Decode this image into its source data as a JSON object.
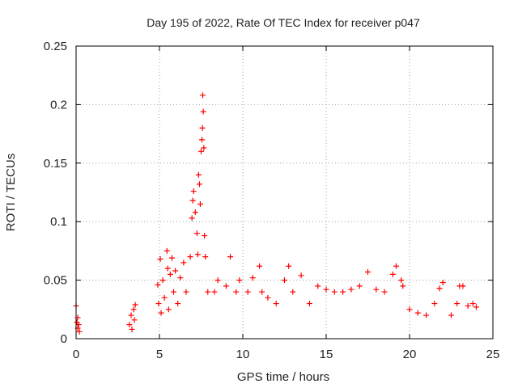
{
  "chart_data": {
    "type": "scatter",
    "title": "Day 195 of 2022, Rate Of TEC Index for receiver p047",
    "xlabel": "GPS time / hours",
    "ylabel": "ROTI / TECUs",
    "xlim": [
      0,
      25
    ],
    "ylim": [
      0,
      0.25
    ],
    "x_ticks": [
      0,
      5,
      10,
      15,
      20,
      25
    ],
    "x_tick_labels": [
      "0",
      "5",
      "10",
      "15",
      "20",
      "25"
    ],
    "y_ticks": [
      0,
      0.05,
      0.1,
      0.15,
      0.2,
      0.25
    ],
    "y_tick_labels": [
      "0",
      "0.05",
      "0.1",
      "0.15",
      "0.2",
      "0.25"
    ],
    "grid": true,
    "marker": "+",
    "color": "#ff0000",
    "series": [
      {
        "points": [
          [
            0.0,
            0.028
          ],
          [
            0.05,
            0.014
          ],
          [
            0.1,
            0.018
          ],
          [
            0.1,
            0.009
          ],
          [
            0.15,
            0.012
          ],
          [
            0.2,
            0.006
          ],
          [
            3.2,
            0.012
          ],
          [
            3.3,
            0.02
          ],
          [
            3.35,
            0.008
          ],
          [
            3.45,
            0.025
          ],
          [
            3.5,
            0.016
          ],
          [
            3.55,
            0.029
          ],
          [
            4.9,
            0.046
          ],
          [
            4.95,
            0.03
          ],
          [
            5.05,
            0.068
          ],
          [
            5.1,
            0.022
          ],
          [
            5.2,
            0.05
          ],
          [
            5.3,
            0.035
          ],
          [
            5.45,
            0.075
          ],
          [
            5.5,
            0.06
          ],
          [
            5.55,
            0.025
          ],
          [
            5.65,
            0.055
          ],
          [
            5.75,
            0.069
          ],
          [
            5.85,
            0.04
          ],
          [
            5.95,
            0.058
          ],
          [
            6.1,
            0.03
          ],
          [
            6.25,
            0.052
          ],
          [
            6.45,
            0.065
          ],
          [
            6.6,
            0.04
          ],
          [
            6.85,
            0.07
          ],
          [
            6.95,
            0.103
          ],
          [
            7.0,
            0.118
          ],
          [
            7.05,
            0.126
          ],
          [
            7.15,
            0.108
          ],
          [
            7.25,
            0.09
          ],
          [
            7.3,
            0.072
          ],
          [
            7.35,
            0.14
          ],
          [
            7.4,
            0.132
          ],
          [
            7.45,
            0.115
          ],
          [
            7.5,
            0.16
          ],
          [
            7.55,
            0.17
          ],
          [
            7.58,
            0.18
          ],
          [
            7.6,
            0.208
          ],
          [
            7.63,
            0.194
          ],
          [
            7.66,
            0.163
          ],
          [
            7.7,
            0.088
          ],
          [
            7.75,
            0.07
          ],
          [
            7.9,
            0.04
          ],
          [
            8.3,
            0.04
          ],
          [
            8.5,
            0.05
          ],
          [
            9.0,
            0.045
          ],
          [
            9.25,
            0.07
          ],
          [
            9.6,
            0.04
          ],
          [
            9.8,
            0.05
          ],
          [
            10.3,
            0.04
          ],
          [
            10.6,
            0.052
          ],
          [
            11.0,
            0.062
          ],
          [
            11.15,
            0.04
          ],
          [
            11.5,
            0.035
          ],
          [
            12.0,
            0.03
          ],
          [
            12.5,
            0.05
          ],
          [
            12.75,
            0.062
          ],
          [
            13.0,
            0.04
          ],
          [
            13.5,
            0.054
          ],
          [
            14.0,
            0.03
          ],
          [
            14.5,
            0.045
          ],
          [
            15.0,
            0.042
          ],
          [
            15.5,
            0.04
          ],
          [
            16.0,
            0.04
          ],
          [
            16.5,
            0.042
          ],
          [
            17.0,
            0.045
          ],
          [
            17.5,
            0.057
          ],
          [
            18.0,
            0.042
          ],
          [
            18.5,
            0.04
          ],
          [
            19.0,
            0.055
          ],
          [
            19.2,
            0.062
          ],
          [
            19.5,
            0.05
          ],
          [
            19.6,
            0.045
          ],
          [
            20.0,
            0.025
          ],
          [
            20.5,
            0.022
          ],
          [
            21.0,
            0.02
          ],
          [
            21.5,
            0.03
          ],
          [
            21.8,
            0.043
          ],
          [
            22.0,
            0.048
          ],
          [
            22.5,
            0.02
          ],
          [
            22.85,
            0.03
          ],
          [
            23.0,
            0.045
          ],
          [
            23.2,
            0.045
          ],
          [
            23.5,
            0.028
          ],
          [
            23.8,
            0.03
          ],
          [
            24.0,
            0.027
          ]
        ]
      }
    ]
  }
}
